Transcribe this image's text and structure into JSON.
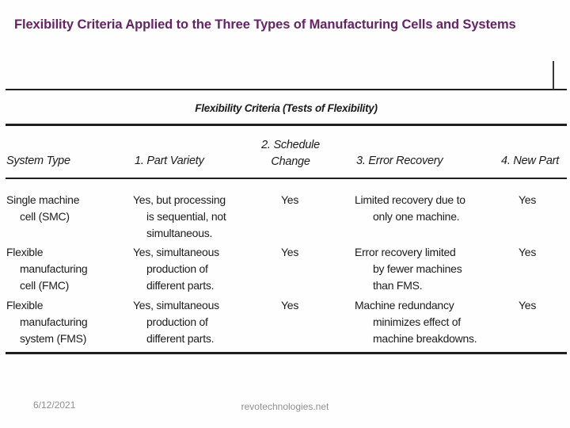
{
  "slide": {
    "title": "Flexibility Criteria Applied to the Three Types of Manufacturing Cells and Systems",
    "footer": {
      "date": "6/12/2021",
      "site": "revotechnologies.net"
    }
  },
  "table": {
    "caption": "Flexibility Criteria (Tests of Flexibility)",
    "columns": [
      "System Type",
      "1. Part Variety",
      "2. Schedule\nChange",
      "3. Error Recovery",
      "4. New Part"
    ],
    "rows": [
      {
        "system_type": "Single machine\ncell (SMC)",
        "part_variety": "Yes, but processing\nis sequential, not\nsimultaneous.",
        "schedule_change": "Yes",
        "error_recovery": "Limited recovery due to\nonly one machine.",
        "new_part": "Yes"
      },
      {
        "system_type": "Flexible\nmanufacturing\ncell (FMC)",
        "part_variety": "Yes, simultaneous\nproduction of\ndifferent parts.",
        "schedule_change": "Yes",
        "error_recovery": "Error recovery limited\nby fewer machines\nthan FMS.",
        "new_part": "Yes"
      },
      {
        "system_type": "Flexible\nmanufacturing\nsystem (FMS)",
        "part_variety": "Yes, simultaneous\nproduction of\ndifferent parts.",
        "schedule_change": "Yes",
        "error_recovery": "Machine redundancy\nminimizes effect of\nmachine breakdowns.",
        "new_part": "Yes"
      }
    ]
  },
  "colors": {
    "title": "#662366",
    "table_ink": "#1c1c1c",
    "rule": "#1f1f1f",
    "footer_gray": "#8f8f8f",
    "background": "#ffffff"
  }
}
